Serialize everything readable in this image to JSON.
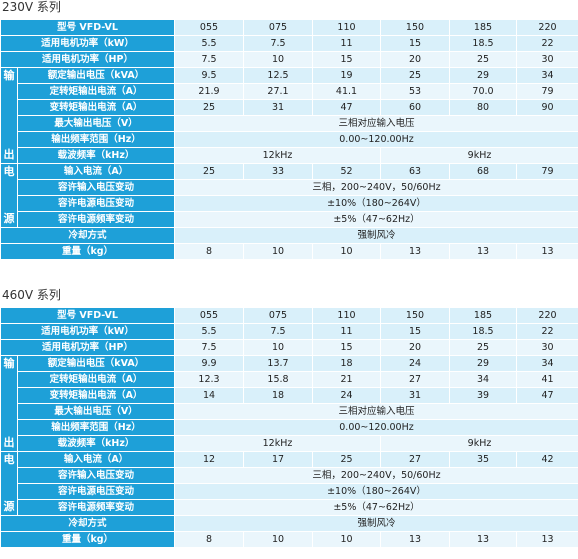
{
  "sections": [
    {
      "title": "230V 系列",
      "side_groups": [
        {
          "chars": [
            "输",
            "出"
          ]
        },
        {
          "chars": [
            "电",
            "源"
          ]
        }
      ],
      "header": {
        "label": "型号 VFD-VL",
        "models": [
          "055",
          "075",
          "110",
          "150",
          "185",
          "220"
        ]
      },
      "rows": [
        {
          "label": "适用电机功率（kW）",
          "values": [
            "5.5",
            "7.5",
            "11",
            "15",
            "18.5",
            "22"
          ]
        },
        {
          "label": "适用电机功率（HP）",
          "values": [
            "7.5",
            "10",
            "15",
            "20",
            "25",
            "30"
          ]
        },
        {
          "label": "额定输出电压（kVA）",
          "values": [
            "9.5",
            "12.5",
            "19",
            "25",
            "29",
            "34"
          ]
        },
        {
          "label": "定转矩输出电流（A）",
          "values": [
            "21.9",
            "27.1",
            "41.1",
            "53",
            "70.0",
            "79"
          ]
        },
        {
          "label": "变转矩输出电流（A）",
          "values": [
            "25",
            "31",
            "47",
            "60",
            "80",
            "90"
          ]
        },
        {
          "label": "最大输出电压（V）",
          "span": "三相对应输入电压"
        },
        {
          "label": "输出频率范围（Hz）",
          "span": "0.00~120.00Hz"
        },
        {
          "label": "载波频率（kHz）",
          "half": [
            "12kHz",
            "9kHz"
          ]
        },
        {
          "label": "输入电流（A）",
          "values": [
            "25",
            "33",
            "52",
            "63",
            "68",
            "79"
          ]
        },
        {
          "label": "容许输入电压变动",
          "span": "三相，200~240V，50/60Hz"
        },
        {
          "label": "容许电源电压变动",
          "span": "±10%（180~264V）"
        },
        {
          "label": "容许电源频率变动",
          "span": "±5%（47~62Hz）"
        },
        {
          "label": "冷却方式",
          "span": "强制风冷"
        },
        {
          "label": "重量（kg）",
          "values": [
            "8",
            "10",
            "10",
            "13",
            "13",
            "13"
          ]
        }
      ]
    },
    {
      "title": "460V 系列",
      "side_groups": [
        {
          "chars": [
            "输",
            "出"
          ]
        },
        {
          "chars": [
            "电",
            "源"
          ]
        }
      ],
      "header": {
        "label": "型号 VFD-VL",
        "models": [
          "055",
          "075",
          "110",
          "150",
          "185",
          "220"
        ]
      },
      "rows": [
        {
          "label": "适用电机功率（kW）",
          "values": [
            "5.5",
            "7.5",
            "11",
            "15",
            "18.5",
            "22"
          ]
        },
        {
          "label": "适用电机功率（HP）",
          "values": [
            "7.5",
            "10",
            "15",
            "20",
            "25",
            "30"
          ]
        },
        {
          "label": "额定输出电压（kVA）",
          "values": [
            "9.9",
            "13.7",
            "18",
            "24",
            "29",
            "34"
          ]
        },
        {
          "label": "定转矩输出电流（A）",
          "values": [
            "12.3",
            "15.8",
            "21",
            "27",
            "34",
            "41"
          ]
        },
        {
          "label": "变转矩输出电流（A）",
          "values": [
            "14",
            "18",
            "24",
            "31",
            "39",
            "47"
          ]
        },
        {
          "label": "最大输出电压（V）",
          "span": "三相对应输入电压"
        },
        {
          "label": "输出频率范围（Hz）",
          "span": "0.00~120.00Hz"
        },
        {
          "label": "载波频率（kHz）",
          "half": [
            "12kHz",
            "9kHz"
          ]
        },
        {
          "label": "输入电流（A）",
          "values": [
            "12",
            "17",
            "25",
            "27",
            "35",
            "42"
          ]
        },
        {
          "label": "容许输入电压变动",
          "span": "三相，200~240V，50/60Hz"
        },
        {
          "label": "容许电源电压变动",
          "span": "±10%（180~264V）"
        },
        {
          "label": "容许电源频率变动",
          "span": "±5%（47~62Hz）"
        },
        {
          "label": "冷却方式",
          "span": "强制风冷"
        },
        {
          "label": "重量（kg）",
          "values": [
            "8",
            "10",
            "10",
            "13",
            "13",
            "13"
          ]
        }
      ]
    }
  ],
  "colors": {
    "header_blue": "#1ea0d8",
    "cell_light": "#d9f0fa",
    "cell_lighter": "#eaf6fc"
  }
}
